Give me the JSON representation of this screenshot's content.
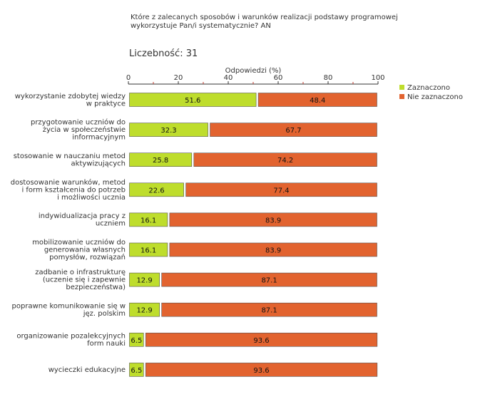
{
  "chart_data": {
    "type": "bar",
    "orientation": "horizontal",
    "stacked": true,
    "title_lines": [
      "Które z zalecanych sposobów i warunków realizacji podstawy programowej",
      "wykorzystuje Pan/i systematycznie?  AN"
    ],
    "count_label": "Liczebność: 31",
    "xlabel": "Odpowiedzi (%)",
    "xlim": [
      0,
      100
    ],
    "x_ticks": [
      "0",
      "20",
      "40",
      "60",
      "80",
      "100"
    ],
    "legend_position": "top-right",
    "categories": [
      [
        "wykorzystanie zdobytej wiedzy",
        "w praktyce"
      ],
      [
        "przygotowanie uczniów do",
        "życia w społeczeństwie",
        "informacyjnym"
      ],
      [
        "stosowanie w nauczaniu metod",
        "aktywizujących"
      ],
      [
        "dostosowanie warunków, metod",
        "i form kształcenia do potrzeb",
        "i możliwości ucznia"
      ],
      [
        "indywidualizacja pracy z",
        "uczniem"
      ],
      [
        "mobilizowanie uczniów do",
        "generowania własnych",
        "pomysłów, rozwiązań"
      ],
      [
        "zadbanie o infrastrukturę",
        "(uczenie się i zapewnie",
        "bezpieczeństwa)"
      ],
      [
        "poprawne komunikowanie się w",
        "jęz. polskim"
      ],
      [
        "organizowanie pozalekcyjnych",
        "form nauki"
      ],
      [
        "wycieczki edukacyjne"
      ]
    ],
    "series": [
      {
        "name": "Zaznaczono",
        "color": "#bedd2c",
        "values": [
          51.6,
          32.3,
          25.8,
          22.6,
          16.1,
          16.1,
          12.9,
          12.9,
          6.5,
          6.5
        ],
        "labels": [
          "51.6",
          "32.3",
          "25.8",
          "22.6",
          "16.1",
          "16.1",
          "12.9",
          "12.9",
          "6.5",
          "6.5"
        ]
      },
      {
        "name": "Nie zaznaczono",
        "color": "#e2632f",
        "values": [
          48.4,
          67.7,
          74.2,
          77.4,
          83.9,
          83.9,
          87.1,
          87.1,
          93.6,
          93.6
        ],
        "labels": [
          "48.4",
          "67.7",
          "74.2",
          "77.4",
          "83.9",
          "83.9",
          "87.1",
          "87.1",
          "93.6",
          "93.6"
        ]
      }
    ]
  }
}
